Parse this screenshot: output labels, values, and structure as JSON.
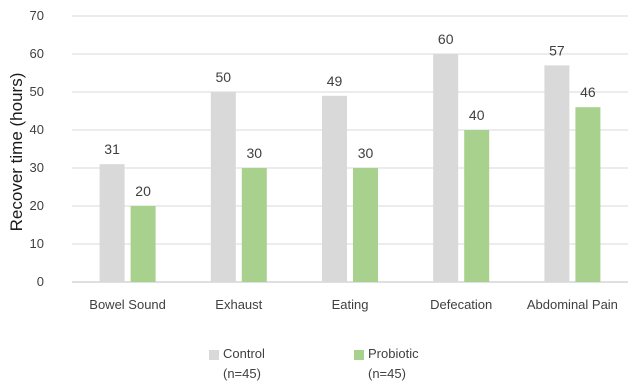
{
  "chart_data": {
    "type": "bar",
    "categories": [
      "Bowel Sound",
      "Exhaust",
      "Eating",
      "Defecation",
      "Abdominal Pain"
    ],
    "series": [
      {
        "name": "Control\n(n=45)",
        "legend_line1": "Control",
        "legend_line2": "(n=45)",
        "values": [
          31,
          50,
          49,
          60,
          57
        ],
        "color": "#d9d9d9"
      },
      {
        "name": "Probiotic\n(n=45)",
        "legend_line1": "Probiotic",
        "legend_line2": "(n=45)",
        "values": [
          20,
          30,
          30,
          40,
          46
        ],
        "color": "#a9d18e"
      }
    ],
    "ylabel": "Recover time (hours)",
    "xlabel": "",
    "ylim": [
      0,
      70
    ],
    "yticks": [
      0,
      10,
      20,
      30,
      40,
      50,
      60,
      70
    ],
    "grid": true,
    "legend_position": "bottom",
    "data_labels": true
  }
}
